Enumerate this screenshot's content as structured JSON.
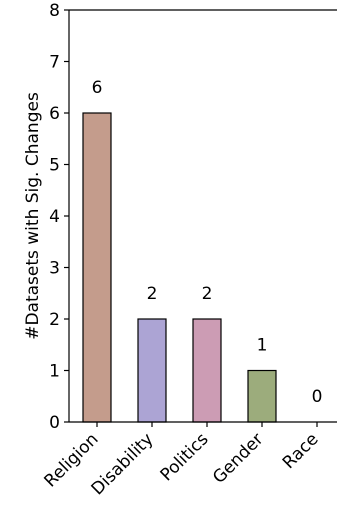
{
  "chart_data": {
    "type": "bar",
    "title": "",
    "xlabel": "",
    "ylabel": "#Datasets with Sig. Changes",
    "categories": [
      "Religion",
      "Disability",
      "Politics",
      "Gender",
      "Race"
    ],
    "values": [
      6,
      2,
      2,
      1,
      0
    ],
    "data_labels": [
      "6",
      "2",
      "2",
      "1",
      "0"
    ],
    "ylim": [
      0,
      8
    ],
    "yticks": [
      0,
      1,
      2,
      3,
      4,
      5,
      6,
      7,
      8
    ],
    "grid": false,
    "colors": [
      "#c49c8c",
      "#aca4d4",
      "#cc9cb4",
      "#9cac7c",
      "#a4c4cc"
    ]
  }
}
